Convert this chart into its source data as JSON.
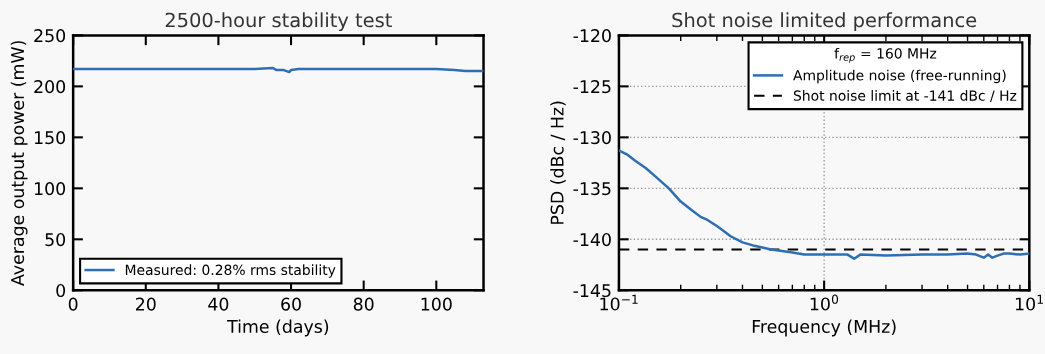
{
  "chart_data": [
    {
      "type": "line",
      "title": "2500-hour stability test",
      "xlabel": "Time (days)",
      "ylabel": "Average output power (mW)",
      "xlim": [
        0,
        113
      ],
      "xticks": [
        0,
        20,
        40,
        60,
        80,
        100
      ],
      "ylim": [
        0,
        250
      ],
      "yticks": [
        0,
        50,
        100,
        150,
        200,
        250
      ],
      "grid": false,
      "legend": "bottom left",
      "marker": "none",
      "line_style": "solid",
      "series": [
        {
          "name": "Measured: 0.28% rms stability",
          "color": "#2f6db5",
          "x": [
            0,
            5,
            10,
            15,
            20,
            25,
            28,
            30,
            35,
            40,
            45,
            50,
            55,
            56,
            58,
            59.5,
            60,
            62,
            65,
            70,
            75,
            80,
            85,
            90,
            95,
            100,
            105,
            108,
            110,
            113
          ],
          "values": [
            217,
            217,
            217,
            217,
            217,
            217,
            217,
            217,
            217,
            217,
            217,
            217,
            218,
            216,
            216,
            214,
            216,
            217,
            217,
            217,
            217,
            217,
            217,
            217,
            217,
            217,
            216,
            215,
            215,
            215
          ]
        }
      ]
    },
    {
      "type": "line",
      "title": "Shot noise limited performance",
      "xlabel": "Frequency (MHz)",
      "ylabel": "PSD (dBc / Hz)",
      "log": "x",
      "xlim": [
        0.1,
        10
      ],
      "xticks": [
        {
          "value": 0.1,
          "label": "10$^{−1}$"
        },
        {
          "value": 1,
          "label": "10$^{0}$"
        },
        {
          "value": 10,
          "label": "10$^{1}$"
        }
      ],
      "ylim": [
        -145,
        -120
      ],
      "yticks": [
        -145,
        -140,
        -135,
        -130,
        -125,
        -120
      ],
      "grid": true,
      "legend": "top right",
      "legend_title": "f$_{rep}$ = 160 MHz",
      "marker": "none",
      "series": [
        {
          "name": "Amplitude noise (free-running)",
          "color": "#2f6db5",
          "line_style": "solid",
          "x": [
            0.1,
            0.11,
            0.12,
            0.135,
            0.15,
            0.175,
            0.2,
            0.225,
            0.25,
            0.27,
            0.3,
            0.33,
            0.35,
            0.4,
            0.45,
            0.5,
            0.55,
            0.6,
            0.7,
            0.8,
            1,
            1.2,
            1.3,
            1.4,
            1.5,
            2,
            3,
            4,
            5,
            5.5,
            6,
            6.3,
            6.6,
            7,
            7.5,
            8,
            9,
            10
          ],
          "values": [
            -131.3,
            -131.7,
            -132.3,
            -133,
            -133.8,
            -135,
            -136.3,
            -137.1,
            -137.8,
            -138.1,
            -138.7,
            -139.3,
            -139.7,
            -140.3,
            -140.6,
            -140.8,
            -141,
            -141.1,
            -141.3,
            -141.5,
            -141.5,
            -141.5,
            -141.5,
            -141.9,
            -141.5,
            -141.6,
            -141.5,
            -141.5,
            -141.4,
            -141.5,
            -141.8,
            -141.5,
            -141.8,
            -141.6,
            -141.4,
            -141.4,
            -141.5,
            -141.4
          ]
        },
        {
          "name": "Shot noise limit at -141 dBc / Hz",
          "color": "#000000",
          "line_style": "dashed",
          "x": [
            0.1,
            10
          ],
          "values": [
            -141,
            -141
          ]
        }
      ]
    }
  ]
}
